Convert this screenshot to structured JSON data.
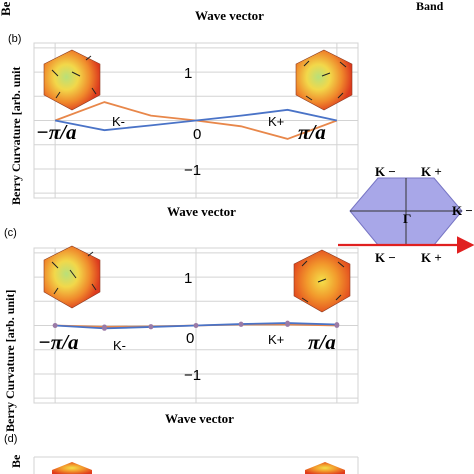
{
  "colors": {
    "series_orange": "#e8874a",
    "series_blue": "#4a73c7",
    "grid": "#d3d3d3",
    "hexagon_fill": "#a8a7e8",
    "hexagon_stroke": "#7775c4",
    "path_red": "#e02020",
    "text": "#000000"
  },
  "page": {
    "top_xlabel": "Wave vector",
    "top_right_label": "Band",
    "top_left_clip": "Be",
    "bottom_left_clip": "Be"
  },
  "panel_b": {
    "tag": "(b)",
    "ylabel": "Berry Curvature [arb. unit",
    "xlabel": "Wave vector",
    "k_minus_label": "K-",
    "k_plus_label": "K+",
    "left_tick": "−π/a",
    "mid_tick": "0",
    "right_tick": "π/a"
  },
  "panel_c": {
    "tag": "(c)",
    "ylabel": "Berry Curvature [arb. unit]",
    "xlabel": "Wave vector",
    "k_minus_label": "K-",
    "k_plus_label": "K+",
    "left_tick": "−π/a",
    "mid_tick": "0",
    "right_tick": "π/a"
  },
  "panel_d": {
    "tag": "(d)"
  },
  "brillouin_zone": {
    "top_left": "K −",
    "top_right": "K +",
    "right": "K −",
    "center": "Γ",
    "bottom_left": "K −",
    "bottom_right": "K +"
  },
  "chart_data": [
    {
      "type": "line",
      "x_ticks": [
        "−π/a",
        "0",
        "π/a"
      ],
      "ylim": [
        -1.6,
        1.6
      ],
      "yticks": [
        1,
        0,
        -1
      ],
      "grid": true,
      "xlabel": "Wave vector",
      "ylabel": "Berry Curvature [arb. unit",
      "series": [
        {
          "color": "#e8874a",
          "x": [
            -1.0,
            -0.65,
            -0.32,
            0.0,
            0.32,
            0.65,
            1.0
          ],
          "values": [
            0.0,
            0.38,
            0.1,
            0.0,
            -0.12,
            -0.38,
            0.0
          ]
        },
        {
          "color": "#4a73c7",
          "x": [
            -1.0,
            -0.65,
            -0.32,
            0.0,
            0.32,
            0.65,
            1.0
          ],
          "values": [
            0.0,
            -0.2,
            -0.1,
            0.0,
            0.1,
            0.22,
            0.0
          ]
        }
      ]
    },
    {
      "type": "line",
      "x_ticks": [
        "−π/a",
        "0",
        "π/a"
      ],
      "ylim": [
        -1.6,
        1.6
      ],
      "yticks": [
        1,
        0,
        -1
      ],
      "grid": true,
      "xlabel": "Wave vector",
      "ylabel": "Berry Curvature [arb. unit]",
      "series": [
        {
          "color": "#e8874a",
          "x": [
            -1.0,
            -0.65,
            -0.32,
            0.0,
            0.32,
            0.65,
            1.0
          ],
          "values": [
            0.0,
            -0.03,
            -0.02,
            0.0,
            0.02,
            0.02,
            0.0
          ]
        },
        {
          "color": "#4a73c7",
          "x": [
            -1.0,
            -0.65,
            -0.32,
            0.0,
            0.32,
            0.65,
            1.0
          ],
          "values": [
            0.0,
            -0.06,
            -0.03,
            0.0,
            0.03,
            0.05,
            0.02
          ]
        }
      ]
    }
  ]
}
